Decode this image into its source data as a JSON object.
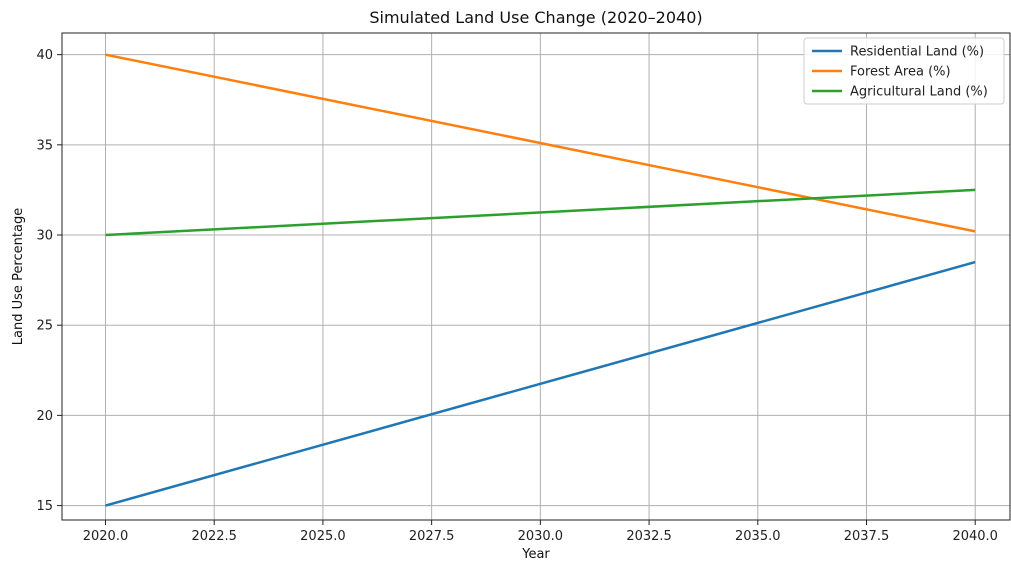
{
  "chart_data": {
    "type": "line",
    "title": "Simulated Land Use Change (2020–2040)",
    "xlabel": "Year",
    "ylabel": "Land Use Percentage",
    "xlim": [
      2019.0,
      2040.8
    ],
    "ylim": [
      14.2,
      41.2
    ],
    "xticks": [
      "2020.0",
      "2022.5",
      "2025.0",
      "2027.5",
      "2030.0",
      "2032.5",
      "2035.0",
      "2037.5",
      "2040.0"
    ],
    "yticks": [
      "15",
      "20",
      "25",
      "30",
      "35",
      "40"
    ],
    "grid": true,
    "legend_position": "top-right",
    "series": [
      {
        "name": "Residential Land (%)",
        "color": "#1f77b4",
        "x": [
          2020,
          2040
        ],
        "y": [
          15.0,
          28.5
        ]
      },
      {
        "name": "Forest Area (%)",
        "color": "#ff7f0e",
        "x": [
          2020,
          2040
        ],
        "y": [
          40.0,
          30.2
        ]
      },
      {
        "name": "Agricultural Land (%)",
        "color": "#2ca02c",
        "x": [
          2020,
          2040
        ],
        "y": [
          30.0,
          32.5
        ]
      }
    ]
  }
}
